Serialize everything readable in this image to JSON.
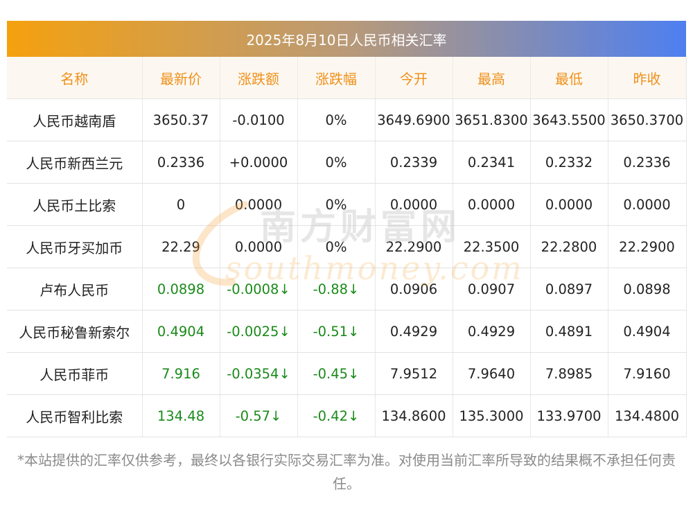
{
  "title": "2025年8月10日人民币相关汇率",
  "columns": [
    "名称",
    "最新价",
    "涨跌额",
    "涨跌幅",
    "今开",
    "最高",
    "最低",
    "昨收"
  ],
  "rows": [
    {
      "name": "人民币越南盾",
      "latest": "3650.37",
      "change": "-0.0100",
      "pct": "0%",
      "open": "3649.6900",
      "high": "3651.8300",
      "low": "3643.5500",
      "prev": "3650.3700",
      "trend": "flat"
    },
    {
      "name": "人民币新西兰元",
      "latest": "0.2336",
      "change": "+0.0000",
      "pct": "0%",
      "open": "0.2339",
      "high": "0.2341",
      "low": "0.2332",
      "prev": "0.2336",
      "trend": "flat"
    },
    {
      "name": "人民币土比索",
      "latest": "0",
      "change": "0.0000",
      "pct": "0%",
      "open": "0.0000",
      "high": "0.0000",
      "low": "0.0000",
      "prev": "0.0000",
      "trend": "flat"
    },
    {
      "name": "人民币牙买加币",
      "latest": "22.29",
      "change": "0.0000",
      "pct": "0%",
      "open": "22.2900",
      "high": "22.3500",
      "low": "22.2800",
      "prev": "22.2900",
      "trend": "flat"
    },
    {
      "name": "卢布人民币",
      "latest": "0.0898",
      "change": "-0.0008↓",
      "pct": "-0.88↓",
      "open": "0.0906",
      "high": "0.0907",
      "low": "0.0897",
      "prev": "0.0898",
      "trend": "down"
    },
    {
      "name": "人民币秘鲁新索尔",
      "latest": "0.4904",
      "change": "-0.0025↓",
      "pct": "-0.51↓",
      "open": "0.4929",
      "high": "0.4929",
      "low": "0.4891",
      "prev": "0.4904",
      "trend": "down"
    },
    {
      "name": "人民币菲币",
      "latest": "7.916",
      "change": "-0.0354↓",
      "pct": "-0.45↓",
      "open": "7.9512",
      "high": "7.9640",
      "low": "7.8985",
      "prev": "7.9160",
      "trend": "down"
    },
    {
      "name": "人民币智利比索",
      "latest": "134.48",
      "change": "-0.57↓",
      "pct": "-0.42↓",
      "open": "134.8600",
      "high": "135.3000",
      "low": "133.9700",
      "prev": "134.4800",
      "trend": "down"
    }
  ],
  "watermark": {
    "cn": "南方财富网",
    "en": "southmoney.com"
  },
  "footer": "*本站提供的汇率仅供参考，最终以各银行实际交易汇率为准。对使用当前汇率所导致的结果概不承担任何责任。",
  "colors": {
    "header_text": "#f0901a",
    "down": "#1a8a1a",
    "gradient_start": "#f5a10f",
    "gradient_end": "#4e7ff0"
  }
}
